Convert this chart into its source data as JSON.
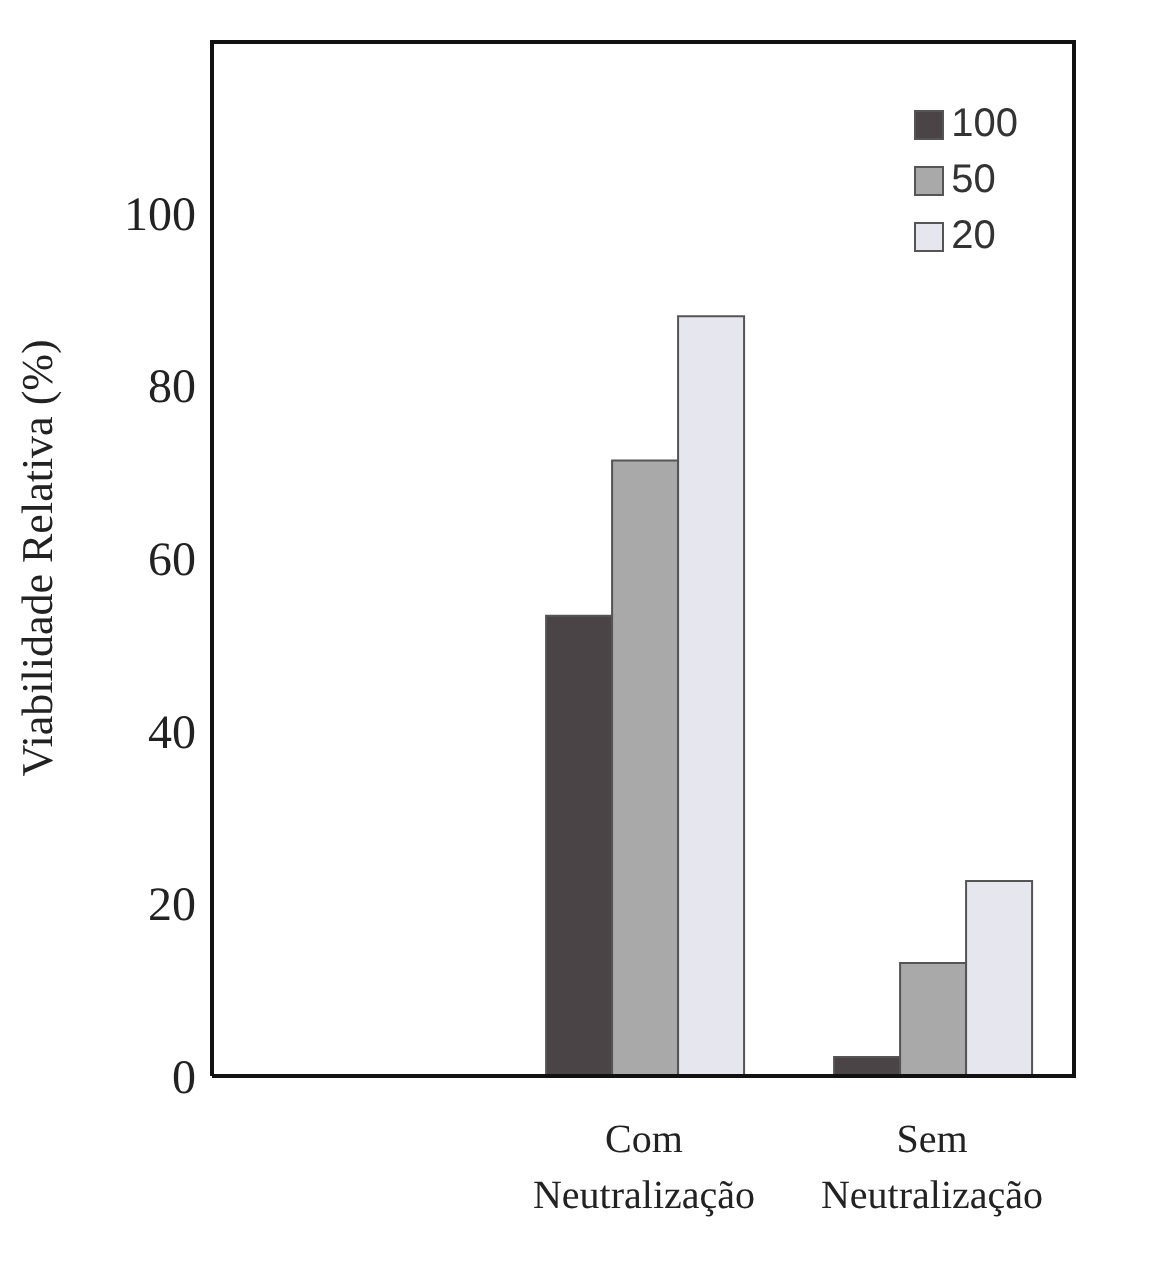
{
  "chart_data": {
    "type": "bar",
    "ylabel": "Viabilidade Relativa (%)",
    "categories": [
      null,
      "Com Neutralização",
      "Sem Neutralização"
    ],
    "series": [
      {
        "name": "100",
        "color": "#4a4446",
        "values": [
          null,
          53.3,
          2.2
        ]
      },
      {
        "name": "50",
        "color": "#a9a9a9",
        "values": [
          null,
          71.3,
          13.1
        ]
      },
      {
        "name": "20",
        "color": "#e6e6ee",
        "values": [
          null,
          88,
          22.6
        ]
      }
    ],
    "ylim": [
      0,
      120
    ],
    "yticks": [
      0,
      20,
      40,
      60,
      80,
      100
    ],
    "grid": false,
    "legend": "top right"
  }
}
